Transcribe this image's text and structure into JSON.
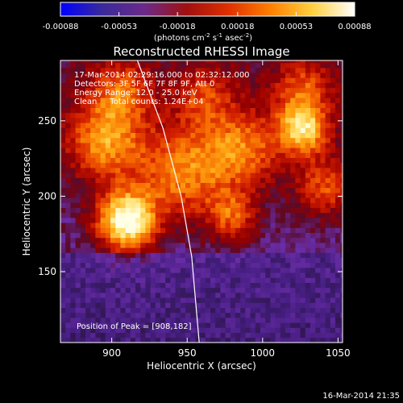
{
  "colorbar": {
    "ticks": [
      "-0.00088",
      "-0.00053",
      "-0.00018",
      "0.00018",
      "0.00053",
      "0.00088"
    ],
    "tick_values": [
      -0.00088,
      -0.00053,
      -0.00018,
      0.00018,
      0.00053,
      0.00088
    ],
    "range": [
      -0.00088,
      0.00088
    ],
    "unit_main": "(photons cm",
    "unit_sup1": "-2",
    "unit_mid": " s",
    "unit_sup2": "-1",
    "unit_tail": " asec",
    "unit_sup3": "-2",
    "unit_close": ")",
    "colors": [
      "#0000ff",
      "#3a2a9a",
      "#6b2a8a",
      "#a01010",
      "#e03000",
      "#ff8000",
      "#ffd040",
      "#ffffff"
    ]
  },
  "chart_data": {
    "type": "heatmap",
    "title": "Reconstructed RHESSI Image",
    "xlabel": "Heliocentric X (arcsec)",
    "ylabel": "Heliocentric Y (arcsec)",
    "xlim": [
      866,
      1053
    ],
    "ylim": [
      103,
      290
    ],
    "xticks": [
      900,
      950,
      1000,
      1050
    ],
    "yticks": [
      150,
      200,
      250
    ],
    "peak": [
      908,
      182
    ],
    "limb_curve": [
      [
        917,
        290
      ],
      [
        934,
        245
      ],
      [
        946,
        200
      ],
      [
        953,
        160
      ],
      [
        958,
        103
      ]
    ],
    "annotations": {
      "time": "17-Mar-2014 02:29:16.000 to 02:32:12.000",
      "detectors": "Detectors: 3F 5F 6F 7F 8F 9F, Att 0",
      "energy": "Energy Range: 12.0 - 25.0 keV",
      "clean": "Clean     Total counts: 1.24E+04",
      "peak_label": "Position of Peak = [908,182]"
    }
  },
  "footer": {
    "timestamp": "16-Mar-2014 21:35"
  }
}
